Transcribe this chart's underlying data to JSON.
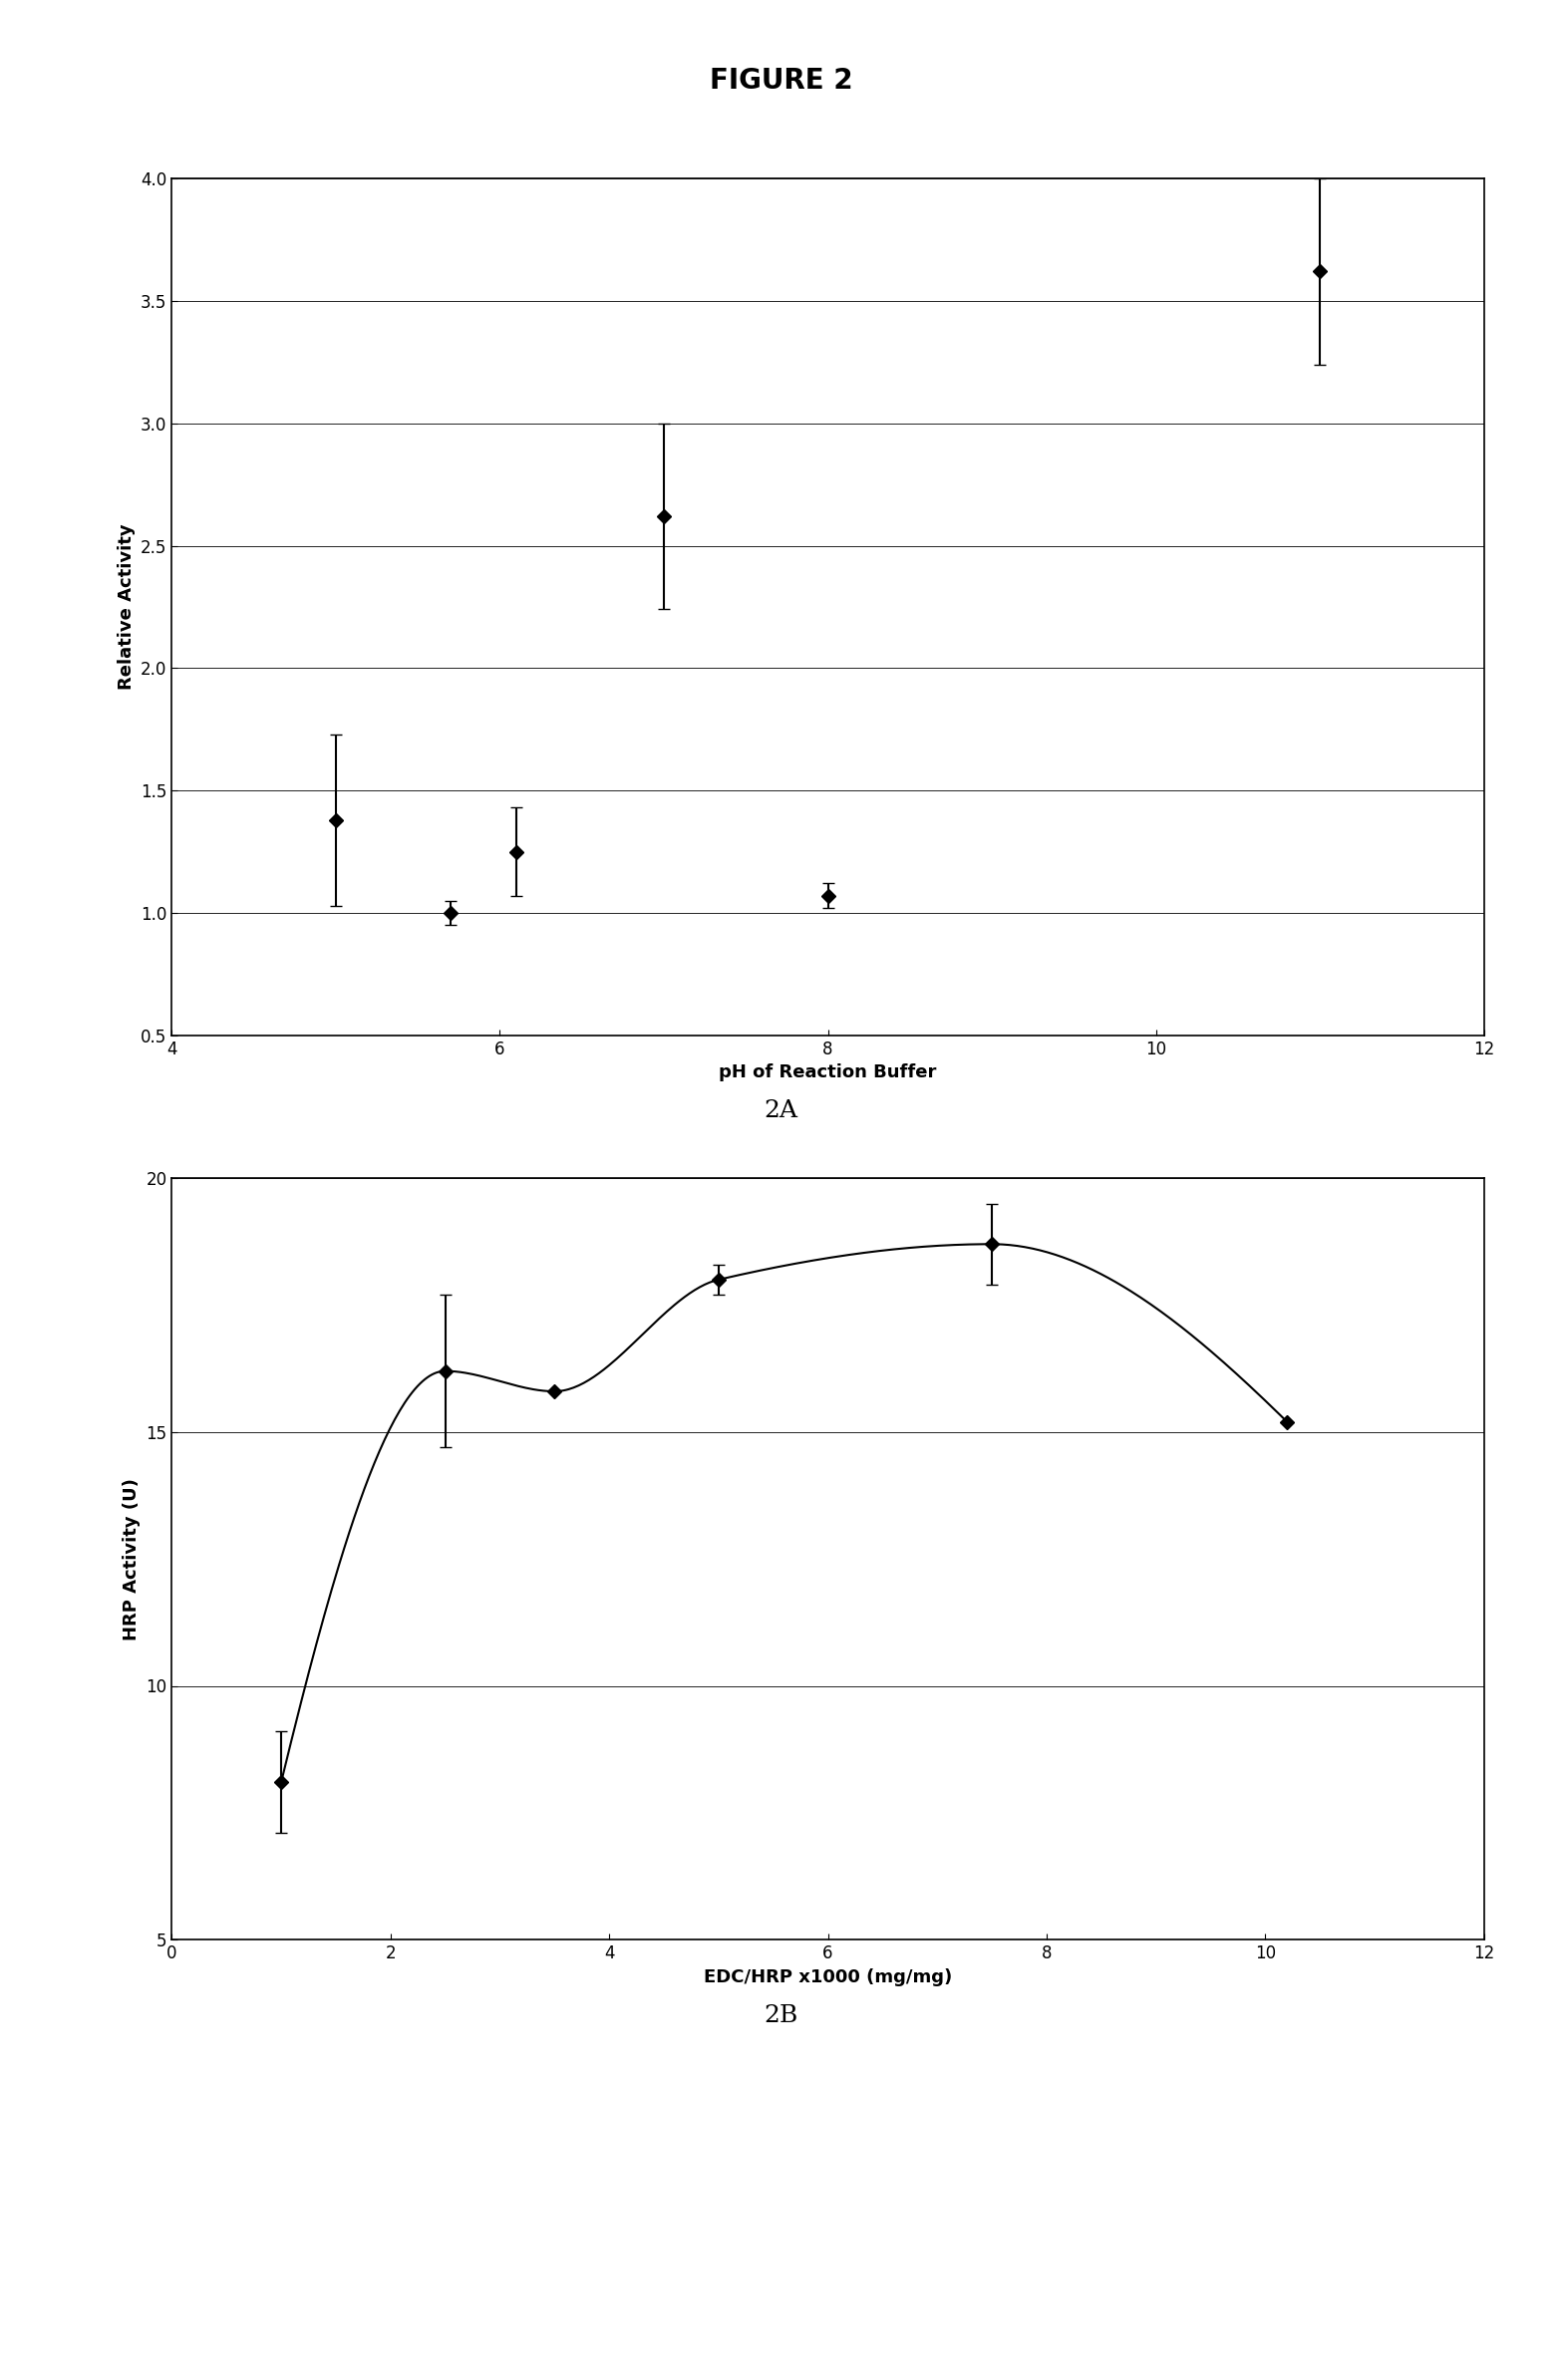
{
  "fig_title": "FIGURE 2",
  "fig_title_fontsize": 20,
  "fig_title_fontweight": "bold",
  "plot_a": {
    "x": [
      5,
      5.7,
      6.1,
      7,
      8,
      11
    ],
    "y": [
      1.38,
      1.0,
      1.25,
      2.62,
      1.07,
      3.62
    ],
    "yerr": [
      0.35,
      0.05,
      0.18,
      0.38,
      0.05,
      0.38
    ],
    "xlabel": "pH of Reaction Buffer",
    "ylabel": "Relative Activity",
    "xlim": [
      4,
      12
    ],
    "ylim": [
      0.5,
      4.0
    ],
    "yticks": [
      0.5,
      1.0,
      1.5,
      2.0,
      2.5,
      3.0,
      3.5,
      4.0
    ],
    "xticks": [
      4,
      6,
      8,
      10,
      12
    ],
    "label": "2A"
  },
  "plot_b": {
    "x": [
      1.0,
      2.5,
      3.5,
      5.0,
      7.5,
      10.2
    ],
    "y": [
      8.1,
      16.2,
      15.8,
      18.0,
      18.7,
      15.2
    ],
    "yerr": [
      1.0,
      1.5,
      0.0,
      0.3,
      0.8,
      0.0
    ],
    "xlabel": "EDC/HRP x1000 (mg/mg)",
    "ylabel": "HRP Activity (U)",
    "xlim": [
      0,
      12
    ],
    "ylim": [
      5,
      20
    ],
    "yticks": [
      5,
      10,
      15,
      20
    ],
    "xticks": [
      0,
      2,
      4,
      6,
      8,
      10,
      12
    ],
    "label": "2B"
  },
  "marker": "D",
  "markersize": 7,
  "marker_color": "black",
  "line_color": "black",
  "ecolor": "black",
  "capsize": 4,
  "linewidth": 1.5,
  "xlabel_fontsize": 13,
  "ylabel_fontsize": 13,
  "tick_fontsize": 12,
  "label_fontsize": 18,
  "background_color": "#ffffff",
  "axes_facecolor": "#ffffff"
}
